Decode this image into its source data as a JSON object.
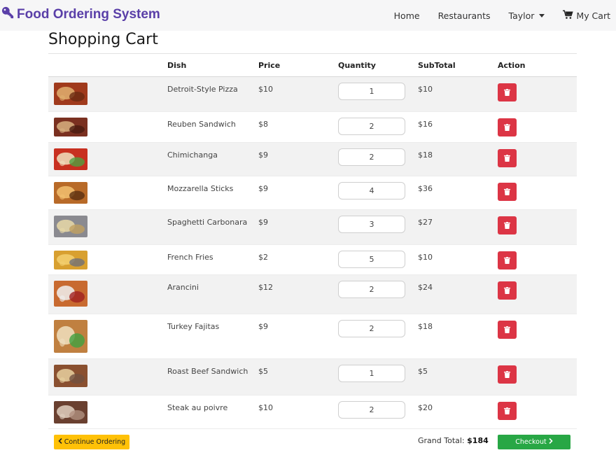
{
  "navbar": {
    "brand": "Food Ordering System",
    "brand_icon": "key-icon",
    "links": {
      "home": "Home",
      "restaurants": "Restaurants",
      "user": "Taylor",
      "cart": "My Cart"
    }
  },
  "page": {
    "title": "Shopping Cart"
  },
  "table": {
    "headers": {
      "dish": "Dish",
      "price": "Price",
      "quantity": "Quantity",
      "subtotal": "SubTotal",
      "action": "Action"
    },
    "rows": [
      {
        "dish": "Detroit-Style Pizza",
        "price": "$10",
        "quantity": "1",
        "subtotal": "$10"
      },
      {
        "dish": "Reuben Sandwich",
        "price": "$8",
        "quantity": "2",
        "subtotal": "$16"
      },
      {
        "dish": "Chimichanga",
        "price": "$9",
        "quantity": "2",
        "subtotal": "$18"
      },
      {
        "dish": "Mozzarella Sticks",
        "price": "$9",
        "quantity": "4",
        "subtotal": "$36"
      },
      {
        "dish": "Spaghetti Carbonara",
        "price": "$9",
        "quantity": "3",
        "subtotal": "$27"
      },
      {
        "dish": "French Fries",
        "price": "$2",
        "quantity": "5",
        "subtotal": "$10"
      },
      {
        "dish": "Arancini",
        "price": "$12",
        "quantity": "2",
        "subtotal": "$24"
      },
      {
        "dish": "Turkey Fajitas",
        "price": "$9",
        "quantity": "2",
        "subtotal": "$18"
      },
      {
        "dish": "Roast Beef Sandwich",
        "price": "$5",
        "quantity": "1",
        "subtotal": "$5"
      },
      {
        "dish": "Steak au poivre",
        "price": "$10",
        "quantity": "2",
        "subtotal": "$20"
      }
    ]
  },
  "footer": {
    "continue_label": "Continue Ordering",
    "grand_total_label": "Grand Total:",
    "grand_total_value": "$184",
    "checkout_label": "Checkout"
  },
  "colors": {
    "brand": "#5a3fa8",
    "delete": "#dc3545",
    "continue": "#ffc107",
    "checkout": "#28a745"
  }
}
